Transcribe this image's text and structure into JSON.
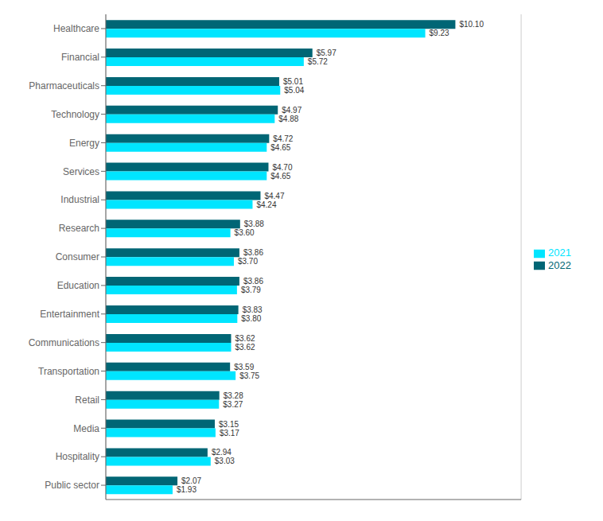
{
  "chart_data": {
    "type": "bar",
    "orientation": "horizontal",
    "categories": [
      "Healthcare",
      "Financial",
      "Pharmaceuticals",
      "Technology",
      "Energy",
      "Services",
      "Industrial",
      "Research",
      "Consumer",
      "Education",
      "Entertainment",
      "Communications",
      "Transportation",
      "Retail",
      "Media",
      "Hospitality",
      "Public sector"
    ],
    "series": [
      {
        "name": "2022",
        "color": "#006675",
        "values": [
          10.1,
          5.97,
          5.01,
          4.97,
          4.72,
          4.7,
          4.47,
          3.88,
          3.86,
          3.86,
          3.83,
          3.62,
          3.59,
          3.28,
          3.15,
          2.94,
          2.07
        ],
        "value_labels": [
          "$10.10",
          "$5.97",
          "$5.01",
          "$4.97",
          "$4.72",
          "$4.70",
          "$4.47",
          "$3.88",
          "$3.86",
          "$3.86",
          "$3.83",
          "$3.62",
          "$3.59",
          "$3.28",
          "$3.15",
          "$2.94",
          "$2.07"
        ]
      },
      {
        "name": "2021",
        "color": "#00e5ff",
        "values": [
          9.23,
          5.72,
          5.04,
          4.88,
          4.65,
          4.65,
          4.24,
          3.6,
          3.7,
          3.79,
          3.8,
          3.62,
          3.75,
          3.27,
          3.17,
          3.03,
          1.93
        ],
        "value_labels": [
          "$9.23",
          "$5.72",
          "$5.04",
          "$4.88",
          "$4.65",
          "$4.65",
          "$4.24",
          "$3.60",
          "$3.70",
          "$3.79",
          "$3.80",
          "$3.62",
          "$3.75",
          "$3.27",
          "$3.17",
          "$3.03",
          "$1.93"
        ]
      }
    ],
    "xlim": [
      0,
      12.0
    ],
    "xticks": [
      2,
      4,
      6,
      8,
      10
    ],
    "grid": true,
    "legend": "right",
    "data_labels": true,
    "tick_labels": "y"
  }
}
